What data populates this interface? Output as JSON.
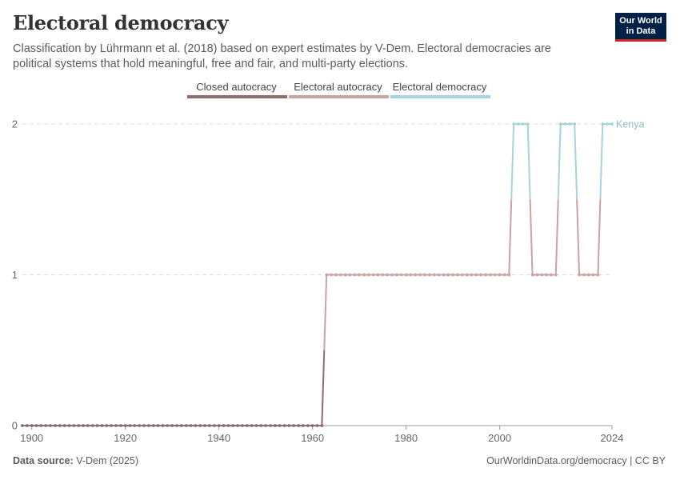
{
  "header": {
    "title": "Electoral democracy",
    "subtitle": "Classification by Lührmann et al. (2018) based on expert estimates by V-Dem. Electoral democracies are political systems that hold meaningful, free and fair, and multi-party elections."
  },
  "logo": {
    "line1": "Our World",
    "line2": "in Data"
  },
  "footer": {
    "source_label": "Data source:",
    "source_value": "V-Dem (2025)",
    "url": "OurWorldinData.org/democracy | CC BY"
  },
  "colors": {
    "closed_autocracy": "#8c6d6d",
    "electoral_autocracy": "#c9a3a4",
    "electoral_democracy": "#a7d3de",
    "grid": "#dddddd",
    "axis": "#999999"
  },
  "chart_data": {
    "type": "line",
    "title": "Electoral democracy",
    "xlabel": "",
    "ylabel": "",
    "xlim": [
      1898,
      2024
    ],
    "ylim": [
      0,
      2
    ],
    "x_ticks": [
      1900,
      1920,
      1940,
      1960,
      1980,
      2000,
      2024
    ],
    "y_ticks": [
      0,
      1,
      2
    ],
    "grid": "horizontal dashed",
    "legend": {
      "placement": "top-center",
      "entries": [
        {
          "label": "Closed autocracy",
          "value": 0,
          "color": "#8c6d6d"
        },
        {
          "label": "Electoral autocracy",
          "value": 1,
          "color": "#c9a3a4"
        },
        {
          "label": "Electoral democracy",
          "value": 2,
          "color": "#a7d3de"
        }
      ]
    },
    "series": [
      {
        "name": "Kenya",
        "segments": [
          {
            "from": 1898,
            "to": 1962,
            "value": 0
          },
          {
            "from": 1963,
            "to": 2002,
            "value": 1
          },
          {
            "from": 2003,
            "to": 2006,
            "value": 2
          },
          {
            "from": 2007,
            "to": 2012,
            "value": 1
          },
          {
            "from": 2013,
            "to": 2016,
            "value": 2
          },
          {
            "from": 2017,
            "to": 2021,
            "value": 1
          },
          {
            "from": 2022,
            "to": 2024,
            "value": 2
          }
        ]
      }
    ]
  }
}
